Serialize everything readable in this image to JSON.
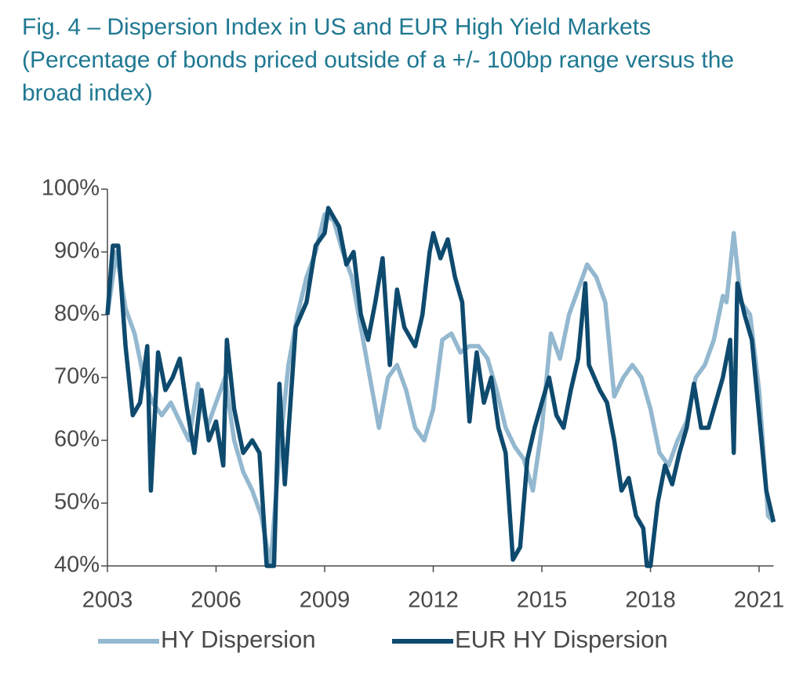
{
  "chart_data": {
    "type": "line",
    "title": "Fig. 4 – Dispersion Index in US and EUR High Yield Markets",
    "subtitle": "(Percentage of bonds priced outside of a +/- 100bp range versus the broad index)",
    "xlim": [
      2003,
      2021.4
    ],
    "xticks": [
      2003,
      2006,
      2009,
      2012,
      2015,
      2018,
      2021
    ],
    "ylim": [
      40,
      100
    ],
    "yticks": [
      {
        "value": 40,
        "label": "40%"
      },
      {
        "value": 50,
        "label": "50%"
      },
      {
        "value": 60,
        "label": "60%"
      },
      {
        "value": 70,
        "label": "70%"
      },
      {
        "value": 80,
        "label": "80%"
      },
      {
        "value": 90,
        "label": "90%"
      },
      {
        "value": 100,
        "label": "100%"
      }
    ],
    "grid": false,
    "legend": "bottom",
    "series": [
      {
        "name": "HY Dispersion",
        "color": "#93b8cf",
        "x": [
          2003.0,
          2003.25,
          2003.5,
          2003.75,
          2004.0,
          2004.25,
          2004.5,
          2004.75,
          2005.0,
          2005.25,
          2005.5,
          2005.75,
          2006.0,
          2006.25,
          2006.5,
          2006.75,
          2007.0,
          2007.25,
          2007.5,
          2007.75,
          2008.0,
          2008.25,
          2008.5,
          2008.75,
          2009.0,
          2009.25,
          2009.5,
          2009.75,
          2010.0,
          2010.25,
          2010.5,
          2010.75,
          2011.0,
          2011.25,
          2011.5,
          2011.75,
          2012.0,
          2012.25,
          2012.5,
          2012.75,
          2013.0,
          2013.25,
          2013.5,
          2013.75,
          2014.0,
          2014.25,
          2014.5,
          2014.75,
          2015.0,
          2015.25,
          2015.5,
          2015.75,
          2016.0,
          2016.25,
          2016.5,
          2016.75,
          2017.0,
          2017.25,
          2017.5,
          2017.75,
          2018.0,
          2018.25,
          2018.5,
          2018.75,
          2019.0,
          2019.25,
          2019.5,
          2019.75,
          2020.0,
          2020.1,
          2020.3,
          2020.5,
          2020.75,
          2021.0,
          2021.25,
          2021.4
        ],
        "values": [
          80,
          90,
          81,
          77,
          70,
          66,
          64,
          66,
          63,
          60,
          69,
          62,
          66,
          70,
          60,
          55,
          52,
          48,
          40,
          58,
          72,
          80,
          86,
          90,
          96,
          95,
          90,
          86,
          78,
          70,
          62,
          70,
          72,
          68,
          62,
          60,
          65,
          76,
          77,
          74,
          75,
          75,
          73,
          68,
          62,
          59,
          57,
          52,
          62,
          77,
          73,
          80,
          84,
          88,
          86,
          82,
          67,
          70,
          72,
          70,
          65,
          58,
          56,
          60,
          63,
          70,
          72,
          76,
          83,
          82,
          93,
          82,
          80,
          68,
          48,
          47
        ]
      },
      {
        "name": "EUR HY Dispersion",
        "color": "#0e4a6e",
        "x": [
          2003.0,
          2003.15,
          2003.3,
          2003.5,
          2003.7,
          2003.9,
          2004.1,
          2004.2,
          2004.4,
          2004.6,
          2004.8,
          2005.0,
          2005.2,
          2005.4,
          2005.6,
          2005.8,
          2006.0,
          2006.2,
          2006.3,
          2006.5,
          2006.75,
          2007.0,
          2007.2,
          2007.4,
          2007.6,
          2007.75,
          2007.9,
          2008.2,
          2008.5,
          2008.75,
          2009.0,
          2009.1,
          2009.4,
          2009.6,
          2009.8,
          2010.0,
          2010.2,
          2010.4,
          2010.6,
          2010.8,
          2011.0,
          2011.2,
          2011.5,
          2011.7,
          2011.9,
          2012.0,
          2012.2,
          2012.4,
          2012.6,
          2012.8,
          2013.0,
          2013.2,
          2013.4,
          2013.6,
          2013.8,
          2014.0,
          2014.2,
          2014.4,
          2014.6,
          2014.8,
          2015.0,
          2015.2,
          2015.4,
          2015.6,
          2015.8,
          2016.0,
          2016.2,
          2016.3,
          2016.6,
          2016.8,
          2017.0,
          2017.2,
          2017.4,
          2017.6,
          2017.8,
          2017.9,
          2018.0,
          2018.2,
          2018.4,
          2018.6,
          2018.8,
          2019.0,
          2019.2,
          2019.4,
          2019.6,
          2019.8,
          2020.0,
          2020.2,
          2020.3,
          2020.4,
          2020.6,
          2020.8,
          2021.0,
          2021.2,
          2021.4
        ],
        "values": [
          80,
          91,
          91,
          75,
          64,
          66,
          75,
          52,
          74,
          68,
          70,
          73,
          65,
          58,
          68,
          60,
          63,
          56,
          76,
          65,
          58,
          60,
          58,
          40,
          40,
          69,
          53,
          78,
          82,
          91,
          93,
          97,
          94,
          88,
          90,
          80,
          76,
          82,
          89,
          72,
          84,
          78,
          75,
          80,
          90,
          93,
          89,
          92,
          86,
          82,
          63,
          74,
          66,
          70,
          62,
          58,
          41,
          43,
          57,
          62,
          66,
          70,
          64,
          62,
          68,
          73,
          85,
          72,
          68,
          66,
          60,
          52,
          54,
          48,
          46,
          40,
          40,
          50,
          56,
          53,
          58,
          62,
          69,
          62,
          62,
          66,
          70,
          76,
          58,
          85,
          80,
          76,
          64,
          52,
          47
        ]
      }
    ]
  }
}
